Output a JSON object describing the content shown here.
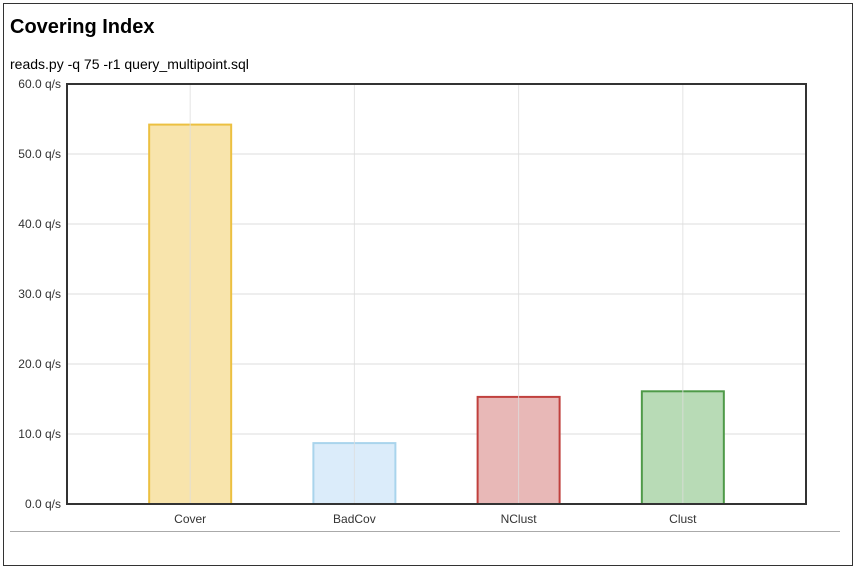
{
  "chart_data": {
    "type": "bar",
    "title": "Covering Index",
    "subtitle": "reads.py -q 75 -r1 query_multipoint.sql",
    "xlabel": "",
    "ylabel": "",
    "categories": [
      "Cover",
      "BadCov",
      "NClust",
      "Clust"
    ],
    "values": [
      54.2,
      8.7,
      15.3,
      16.1
    ],
    "ylim": [
      0,
      60
    ],
    "yticks": [
      0,
      10,
      20,
      30,
      40,
      50,
      60
    ],
    "ytick_labels": [
      "0.0 q/s",
      "10.0 q/s",
      "20.0 q/s",
      "30.0 q/s",
      "40.0 q/s",
      "50.0 q/s",
      "60.0 q/s"
    ],
    "grid": true,
    "legend": "none",
    "colors": {
      "fills": [
        "#f8e4ac",
        "#dbecfa",
        "#e8b8b7",
        "#b8dbb6"
      ],
      "strokes": [
        "#ecc041",
        "#a9d4ec",
        "#c0403d",
        "#4e9a48"
      ],
      "grid": "#dddddd",
      "axis": "#333333"
    }
  }
}
